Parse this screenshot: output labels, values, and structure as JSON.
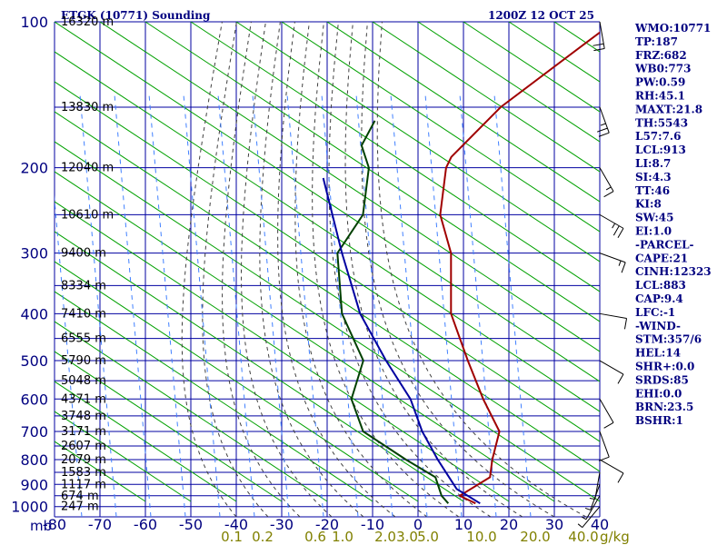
{
  "chart_data": {
    "type": "skew-t",
    "title": "ETGK (10771) Sounding",
    "timestamp": "1200Z 12 OCT 25",
    "pressure_unit": "mb",
    "mix_unit": "g/kg",
    "pressure_levels": [
      100,
      200,
      300,
      400,
      500,
      600,
      700,
      800,
      900,
      1000
    ],
    "pressure_labels": [
      "100",
      "200",
      "300",
      "400",
      "500",
      "600",
      "700",
      "800",
      "900",
      "1000"
    ],
    "temperature_ticks": [
      -80,
      -70,
      -60,
      -50,
      -40,
      -30,
      -20,
      -10,
      0,
      10,
      20,
      30,
      40
    ],
    "temperature_labels": [
      "-80",
      "-70",
      "-60",
      "-50",
      "-40",
      "-30",
      "-20",
      "-10",
      "0",
      "10",
      "20",
      "30",
      "40"
    ],
    "mixing_ratio_labels": [
      "0.1",
      "0.2",
      "0.6",
      "1.0",
      "2.0",
      "3.0",
      "5.0",
      "10.0",
      "20.0",
      "40.0"
    ],
    "mixing_ratio_values": [
      0.1,
      0.2,
      0.6,
      1.0,
      2.0,
      3.0,
      5.0,
      10.0,
      20.0,
      40.0
    ],
    "height_levels": [
      {
        "p": 100,
        "label": "16320 m"
      },
      {
        "p": 150,
        "label": "13830 m"
      },
      {
        "p": 200,
        "label": "12040 m"
      },
      {
        "p": 250,
        "label": "10610 m"
      },
      {
        "p": 300,
        "label": "9400 m"
      },
      {
        "p": 350,
        "label": "8334 m"
      },
      {
        "p": 400,
        "label": "7410 m"
      },
      {
        "p": 450,
        "label": "6555 m"
      },
      {
        "p": 500,
        "label": "5790 m"
      },
      {
        "p": 550,
        "label": "5048 m"
      },
      {
        "p": 600,
        "label": "4371 m"
      },
      {
        "p": 650,
        "label": "3748 m"
      },
      {
        "p": 700,
        "label": "3171 m"
      },
      {
        "p": 750,
        "label": "2607 m"
      },
      {
        "p": 800,
        "label": "2079 m"
      },
      {
        "p": 850,
        "label": "1583 m"
      },
      {
        "p": 900,
        "label": "1117 m"
      },
      {
        "p": 950,
        "label": "674 m"
      },
      {
        "p": 1000,
        "label": "247 m"
      }
    ],
    "series": [
      {
        "name": "Temperature",
        "color": "#a00000",
        "points": [
          {
            "p": 100,
            "t": -55
          },
          {
            "p": 150,
            "t": -63
          },
          {
            "p": 190,
            "t": -64
          },
          {
            "p": 200,
            "t": -63
          },
          {
            "p": 250,
            "t": -55
          },
          {
            "p": 300,
            "t": -45
          },
          {
            "p": 400,
            "t": -33
          },
          {
            "p": 500,
            "t": -20
          },
          {
            "p": 600,
            "t": -9
          },
          {
            "p": 700,
            "t": 1
          },
          {
            "p": 800,
            "t": 5
          },
          {
            "p": 870,
            "t": 8
          },
          {
            "p": 950,
            "t": 5
          },
          {
            "p": 985,
            "t": 10
          }
        ]
      },
      {
        "name": "Dewpoint",
        "color": "#004000",
        "points": [
          {
            "p": 160,
            "t": -88
          },
          {
            "p": 180,
            "t": -86
          },
          {
            "p": 200,
            "t": -80
          },
          {
            "p": 250,
            "t": -72
          },
          {
            "p": 300,
            "t": -70
          },
          {
            "p": 400,
            "t": -57
          },
          {
            "p": 500,
            "t": -43
          },
          {
            "p": 600,
            "t": -38
          },
          {
            "p": 700,
            "t": -29
          },
          {
            "p": 800,
            "t": -14
          },
          {
            "p": 870,
            "t": -4
          },
          {
            "p": 950,
            "t": 1
          },
          {
            "p": 985,
            "t": 4
          }
        ]
      },
      {
        "name": "Parcel",
        "color": "#0000a0",
        "points": [
          {
            "p": 210,
            "t": -88
          },
          {
            "p": 300,
            "t": -69
          },
          {
            "p": 400,
            "t": -53
          },
          {
            "p": 500,
            "t": -38
          },
          {
            "p": 600,
            "t": -25
          },
          {
            "p": 700,
            "t": -16
          },
          {
            "p": 800,
            "t": -7
          },
          {
            "p": 870,
            "t": -1
          },
          {
            "p": 920,
            "t": 3
          },
          {
            "p": 985,
            "t": 11
          }
        ]
      }
    ],
    "wind_barbs": [
      {
        "p": 100,
        "dir": 350,
        "spd": 20
      },
      {
        "p": 150,
        "dir": 340,
        "spd": 25
      },
      {
        "p": 200,
        "dir": 330,
        "spd": 15
      },
      {
        "p": 250,
        "dir": 300,
        "spd": 25
      },
      {
        "p": 300,
        "dir": 290,
        "spd": 15
      },
      {
        "p": 400,
        "dir": 280,
        "spd": 10
      },
      {
        "p": 500,
        "dir": 300,
        "spd": 10
      },
      {
        "p": 600,
        "dir": 330,
        "spd": 10
      },
      {
        "p": 700,
        "dir": 340,
        "spd": 10
      },
      {
        "p": 800,
        "dir": 300,
        "spd": 10
      },
      {
        "p": 850,
        "dir": 10,
        "spd": 5
      },
      {
        "p": 900,
        "dir": 20,
        "spd": 5
      },
      {
        "p": 950,
        "dir": 30,
        "spd": 5
      },
      {
        "p": 1000,
        "dir": 40,
        "spd": 5
      }
    ]
  },
  "indices": [
    "WMO:10771",
    "TP:187",
    "FRZ:682",
    "WB0:773",
    "PW:0.59",
    "RH:45.1",
    "MAXT:21.8",
    "TH:5543",
    "L57:7.6",
    "LCL:913",
    "LI:8.7",
    "SI:4.3",
    "TT:46",
    "KI:8",
    "SW:45",
    "EI:1.0",
    "-PARCEL-",
    "CAPE:21",
    "CINH:12323",
    "LCL:883",
    "CAP:9.4",
    "LFC:-1",
    "-WIND-",
    "STM:357/6",
    "HEL:14",
    "SHR+:0.0",
    "SRDS:85",
    "EHI:0.0",
    "BRN:23.5",
    "BSHR:1"
  ],
  "colors": {
    "grid": "#0000a0",
    "dry_adiabat": "#00a000",
    "moist_adiabat": "#404040",
    "mix_ratio": "#4080ff",
    "text": "#000080",
    "mix_label": "#808000"
  }
}
